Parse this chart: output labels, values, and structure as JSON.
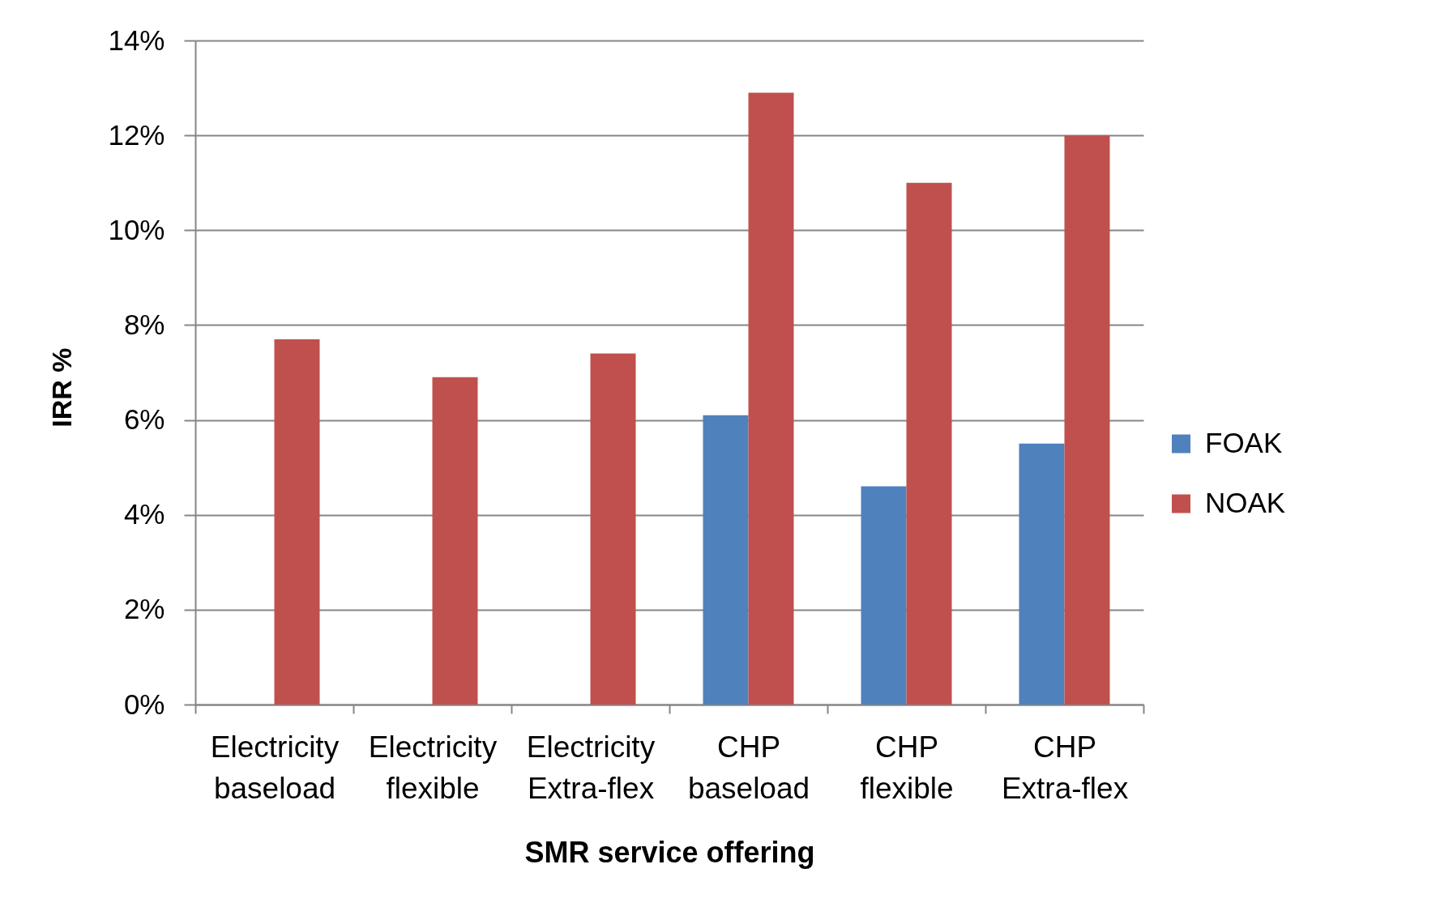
{
  "chart_data": {
    "type": "bar",
    "categories": [
      "Electricity baseload",
      "Electricity flexible",
      "Electricity Extra-flex",
      "CHP baseload",
      "CHP flexible",
      "CHP Extra-flex"
    ],
    "series": [
      {
        "name": "FOAK",
        "color": "#4f81bd",
        "values": [
          null,
          null,
          null,
          6.1,
          4.6,
          5.5
        ]
      },
      {
        "name": "NOAK",
        "color": "#c0504d",
        "values": [
          7.7,
          6.9,
          7.4,
          12.9,
          11.0,
          12.0
        ]
      }
    ],
    "xlabel": "SMR service offering",
    "ylabel": "IRR %",
    "ylim": [
      0,
      14
    ],
    "yticks": [
      {
        "value": 0,
        "label": "0%"
      },
      {
        "value": 2,
        "label": "2%"
      },
      {
        "value": 4,
        "label": "4%"
      },
      {
        "value": 6,
        "label": "6%"
      },
      {
        "value": 8,
        "label": "8%"
      },
      {
        "value": 10,
        "label": "10%"
      },
      {
        "value": 12,
        "label": "12%"
      },
      {
        "value": 14,
        "label": "14%"
      }
    ],
    "grid": "y",
    "legend": "right"
  }
}
